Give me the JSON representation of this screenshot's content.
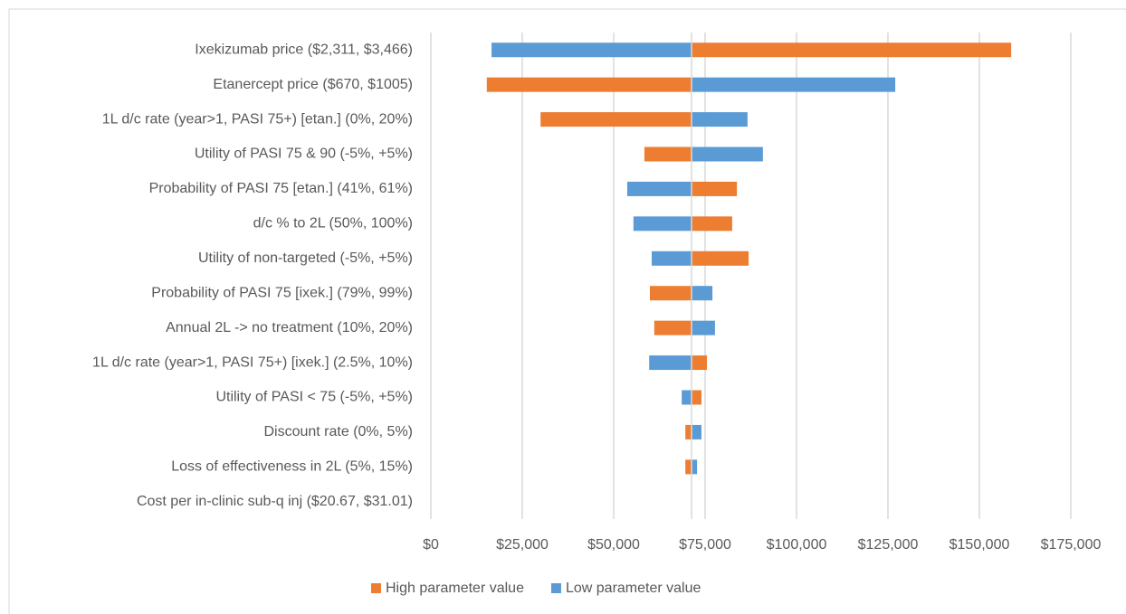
{
  "chart_data": {
    "type": "tornado",
    "categories": [
      "Ixekizumab price ($2,311, $3,466)",
      "Etanercept price ($670, $1005)",
      "1L d/c rate (year>1, PASI 75+) [etan.] (0%, 20%)",
      "Utility of PASI 75 & 90 (-5%, +5%)",
      "Probability of PASI 75 [etan.] (41%, 61%)",
      "d/c % to 2L (50%, 100%)",
      "Utility of non-targeted (-5%, +5%)",
      "Probability of PASI 75 [ixek.] (79%, 99%)",
      "Annual 2L -> no treatment (10%, 20%)",
      "1L d/c rate (year>1, PASI 75+) [ixek.] (2.5%, 10%)",
      "Utility of PASI < 75 (-5%, +5%)",
      "Discount rate (0%, 5%)",
      "Loss of effectiveness in 2L (5%, 15%)",
      "Cost per in-clinic sub-q inj ($20.67, $31.01)"
    ],
    "series": [
      {
        "name": "High parameter value",
        "color": "#ed7d31",
        "values": [
          158700,
          15300,
          30000,
          58400,
          83700,
          82400,
          86900,
          59900,
          61100,
          75500,
          74000,
          69600,
          69600,
          71300
        ]
      },
      {
        "name": "Low parameter value",
        "color": "#5b9bd5",
        "values": [
          16600,
          127000,
          86600,
          90800,
          53700,
          55400,
          60400,
          77000,
          77700,
          59700,
          68600,
          74000,
          72800,
          71300
        ]
      }
    ],
    "base_value": 71300,
    "xlim": [
      0,
      175000
    ],
    "xticks": [
      {
        "value": 0,
        "label": "$0"
      },
      {
        "value": 25000,
        "label": "$25,000"
      },
      {
        "value": 50000,
        "label": "$50,000"
      },
      {
        "value": 75000,
        "label": "$75,000"
      },
      {
        "value": 100000,
        "label": "$100,000"
      },
      {
        "value": 125000,
        "label": "$125,000"
      },
      {
        "value": 150000,
        "label": "$150,000"
      },
      {
        "value": 175000,
        "label": "$175,000"
      }
    ],
    "grid": true,
    "legend": "bottom"
  }
}
